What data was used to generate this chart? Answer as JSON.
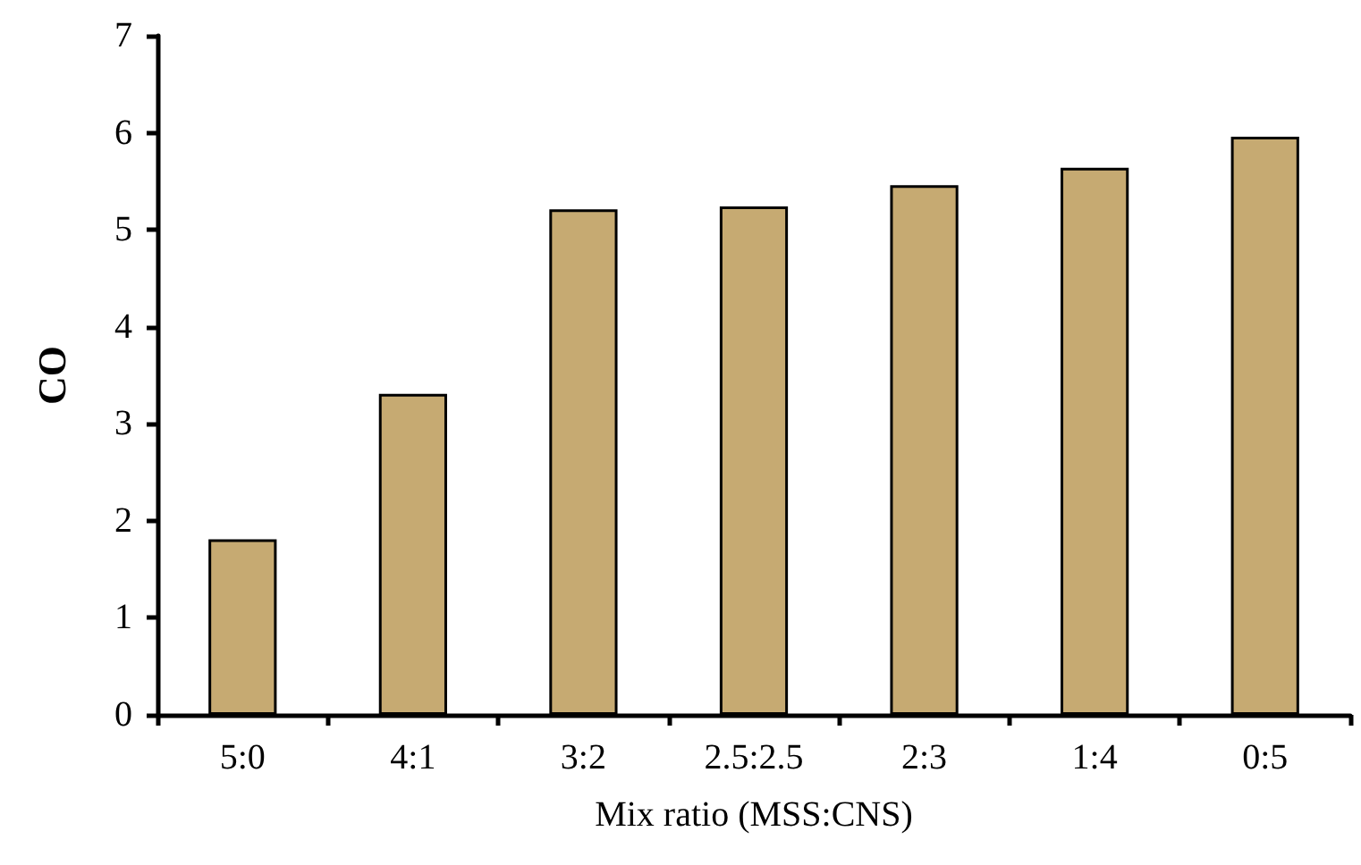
{
  "chart_data": {
    "type": "bar",
    "xlabel": "Mix ratio (MSS:CNS)",
    "ylabel": "CO",
    "categories": [
      "5:0",
      "4:1",
      "3:2",
      "2.5:2.5",
      "2:3",
      "1:4",
      "0:5"
    ],
    "values": [
      1.81,
      3.31,
      5.21,
      5.24,
      5.46,
      5.64,
      5.96
    ],
    "color": "#c6aa72",
    "ylim": [
      0,
      7
    ],
    "yticks": [
      0,
      1,
      2,
      3,
      4,
      5,
      6,
      7
    ],
    "grid": false
  }
}
